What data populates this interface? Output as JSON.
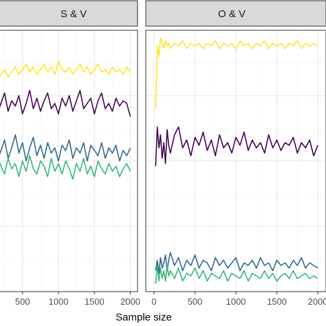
{
  "chart_data": [
    {
      "type": "line",
      "panel": "S & V",
      "xlabel": "Sample size",
      "xlim": [
        -100,
        2100
      ],
      "ylim": [
        0,
        1
      ],
      "x_ticks": [
        500,
        1000,
        1500,
        2000
      ],
      "x_tick_labels": [
        "500",
        "1000",
        "1500",
        "2000"
      ],
      "grid": true,
      "series": [
        {
          "color": "#FDE725",
          "x": [
            50,
            100,
            150,
            200,
            250,
            300,
            350,
            400,
            450,
            500,
            550,
            600,
            650,
            700,
            750,
            800,
            850,
            900,
            950,
            1000,
            1050,
            1100,
            1150,
            1200,
            1250,
            1300,
            1350,
            1400,
            1450,
            1500,
            1550,
            1600,
            1650,
            1700,
            1750,
            1800,
            1850,
            1900,
            1950,
            2000
          ],
          "y": [
            0.82,
            0.84,
            0.81,
            0.83,
            0.85,
            0.82,
            0.84,
            0.86,
            0.83,
            0.85,
            0.87,
            0.84,
            0.86,
            0.83,
            0.85,
            0.87,
            0.84,
            0.86,
            0.83,
            0.88,
            0.85,
            0.84,
            0.86,
            0.83,
            0.85,
            0.87,
            0.84,
            0.86,
            0.83,
            0.85,
            0.87,
            0.84,
            0.85,
            0.83,
            0.86,
            0.84,
            0.85,
            0.83,
            0.86,
            0.84
          ]
        },
        {
          "color": "#440154",
          "x": [
            50,
            100,
            150,
            200,
            250,
            300,
            350,
            400,
            450,
            500,
            550,
            600,
            650,
            700,
            750,
            800,
            850,
            900,
            950,
            1000,
            1050,
            1100,
            1150,
            1200,
            1250,
            1300,
            1350,
            1400,
            1450,
            1500,
            1550,
            1600,
            1650,
            1700,
            1750,
            1800,
            1850,
            1900,
            1950,
            2000
          ],
          "y": [
            0.7,
            0.74,
            0.68,
            0.72,
            0.76,
            0.69,
            0.73,
            0.71,
            0.75,
            0.68,
            0.72,
            0.77,
            0.7,
            0.74,
            0.69,
            0.73,
            0.76,
            0.7,
            0.72,
            0.68,
            0.74,
            0.71,
            0.75,
            0.69,
            0.73,
            0.77,
            0.7,
            0.72,
            0.74,
            0.68,
            0.73,
            0.76,
            0.7,
            0.72,
            0.69,
            0.74,
            0.71,
            0.73,
            0.72,
            0.67
          ]
        },
        {
          "color": "#31688E",
          "x": [
            50,
            100,
            150,
            200,
            250,
            300,
            350,
            400,
            450,
            500,
            550,
            600,
            650,
            700,
            750,
            800,
            850,
            900,
            950,
            1000,
            1050,
            1100,
            1150,
            1200,
            1250,
            1300,
            1350,
            1400,
            1450,
            1500,
            1550,
            1600,
            1650,
            1700,
            1750,
            1800,
            1850,
            1900,
            1950,
            2000
          ],
          "y": [
            0.52,
            0.56,
            0.5,
            0.54,
            0.58,
            0.51,
            0.55,
            0.6,
            0.53,
            0.57,
            0.5,
            0.55,
            0.59,
            0.52,
            0.56,
            0.51,
            0.57,
            0.53,
            0.55,
            0.5,
            0.56,
            0.54,
            0.58,
            0.51,
            0.55,
            0.53,
            0.57,
            0.5,
            0.56,
            0.54,
            0.52,
            0.57,
            0.51,
            0.55,
            0.53,
            0.56,
            0.5,
            0.54,
            0.52,
            0.55
          ]
        },
        {
          "color": "#35B779",
          "x": [
            50,
            100,
            150,
            200,
            250,
            300,
            350,
            400,
            450,
            500,
            550,
            600,
            650,
            700,
            750,
            800,
            850,
            900,
            950,
            1000,
            1050,
            1100,
            1150,
            1200,
            1250,
            1300,
            1350,
            1400,
            1450,
            1500,
            1550,
            1600,
            1650,
            1700,
            1750,
            1800,
            1850,
            1900,
            1950,
            2000
          ],
          "y": [
            0.5,
            0.47,
            0.52,
            0.48,
            0.45,
            0.51,
            0.47,
            0.49,
            0.44,
            0.5,
            0.46,
            0.52,
            0.47,
            0.45,
            0.5,
            0.48,
            0.44,
            0.51,
            0.46,
            0.49,
            0.45,
            0.5,
            0.47,
            0.43,
            0.49,
            0.46,
            0.51,
            0.45,
            0.48,
            0.44,
            0.5,
            0.47,
            0.45,
            0.49,
            0.46,
            0.48,
            0.44,
            0.47,
            0.49,
            0.46
          ]
        }
      ]
    },
    {
      "type": "line",
      "panel": "O & V",
      "xlabel": "Sample size",
      "xlim": [
        -100,
        2100
      ],
      "ylim": [
        0,
        1
      ],
      "x_ticks": [
        0,
        500,
        1000,
        1500,
        2000
      ],
      "x_tick_labels": [
        "0",
        "500",
        "1000",
        "1500",
        "2000"
      ],
      "grid": true,
      "series": [
        {
          "color": "#FDE725",
          "x": [
            20,
            40,
            60,
            80,
            100,
            120,
            140,
            160,
            180,
            200,
            250,
            300,
            350,
            400,
            450,
            500,
            550,
            600,
            650,
            700,
            750,
            800,
            850,
            900,
            950,
            1000,
            1050,
            1100,
            1150,
            1200,
            1250,
            1300,
            1350,
            1400,
            1450,
            1500,
            1550,
            1600,
            1650,
            1700,
            1750,
            1800,
            1850,
            1900,
            1950,
            2000
          ],
          "y": [
            0.7,
            0.94,
            0.9,
            0.97,
            0.95,
            0.93,
            0.96,
            0.94,
            0.95,
            0.93,
            0.95,
            0.94,
            0.96,
            0.93,
            0.95,
            0.94,
            0.95,
            0.93,
            0.95,
            0.94,
            0.96,
            0.93,
            0.95,
            0.94,
            0.95,
            0.93,
            0.96,
            0.94,
            0.95,
            0.93,
            0.95,
            0.94,
            0.96,
            0.93,
            0.95,
            0.94,
            0.95,
            0.93,
            0.95,
            0.94,
            0.96,
            0.93,
            0.95,
            0.94,
            0.95,
            0.94
          ]
        },
        {
          "color": "#440154",
          "x": [
            20,
            40,
            60,
            80,
            100,
            120,
            140,
            160,
            180,
            200,
            250,
            300,
            350,
            400,
            450,
            500,
            550,
            600,
            650,
            700,
            750,
            800,
            850,
            900,
            950,
            1000,
            1050,
            1100,
            1150,
            1200,
            1250,
            1300,
            1350,
            1400,
            1450,
            1500,
            1550,
            1600,
            1650,
            1700,
            1750,
            1800,
            1850,
            1900,
            1950,
            2000
          ],
          "y": [
            0.48,
            0.63,
            0.55,
            0.6,
            0.51,
            0.57,
            0.49,
            0.62,
            0.56,
            0.53,
            0.6,
            0.63,
            0.55,
            0.58,
            0.52,
            0.59,
            0.56,
            0.61,
            0.54,
            0.58,
            0.52,
            0.6,
            0.55,
            0.57,
            0.53,
            0.59,
            0.56,
            0.61,
            0.54,
            0.58,
            0.55,
            0.57,
            0.53,
            0.6,
            0.55,
            0.58,
            0.54,
            0.57,
            0.56,
            0.59,
            0.53,
            0.57,
            0.55,
            0.58,
            0.52,
            0.56
          ]
        },
        {
          "color": "#31688E",
          "x": [
            20,
            40,
            60,
            80,
            100,
            120,
            140,
            160,
            180,
            200,
            250,
            300,
            350,
            400,
            450,
            500,
            550,
            600,
            650,
            700,
            750,
            800,
            850,
            900,
            950,
            1000,
            1050,
            1100,
            1150,
            1200,
            1250,
            1300,
            1350,
            1400,
            1450,
            1500,
            1550,
            1600,
            1650,
            1700,
            1750,
            1800,
            1850,
            1900,
            1950,
            2000
          ],
          "y": [
            0.08,
            0.12,
            0.07,
            0.13,
            0.09,
            0.11,
            0.14,
            0.08,
            0.12,
            0.15,
            0.1,
            0.13,
            0.08,
            0.12,
            0.1,
            0.14,
            0.09,
            0.12,
            0.11,
            0.08,
            0.13,
            0.1,
            0.12,
            0.09,
            0.11,
            0.13,
            0.08,
            0.11,
            0.1,
            0.12,
            0.09,
            0.13,
            0.1,
            0.11,
            0.08,
            0.12,
            0.1,
            0.11,
            0.09,
            0.12,
            0.1,
            0.13,
            0.09,
            0.11,
            0.1,
            0.09
          ]
        },
        {
          "color": "#35B779",
          "x": [
            20,
            40,
            60,
            80,
            100,
            120,
            140,
            160,
            180,
            200,
            250,
            300,
            350,
            400,
            450,
            500,
            550,
            600,
            650,
            700,
            750,
            800,
            850,
            900,
            950,
            1000,
            1050,
            1100,
            1150,
            1200,
            1250,
            1300,
            1350,
            1400,
            1450,
            1500,
            1550,
            1600,
            1650,
            1700,
            1750,
            1800,
            1850,
            1900,
            1950,
            2000
          ],
          "y": [
            0.03,
            0.1,
            0.04,
            0.09,
            0.05,
            0.08,
            0.04,
            0.1,
            0.06,
            0.08,
            0.05,
            0.09,
            0.04,
            0.07,
            0.06,
            0.09,
            0.05,
            0.08,
            0.04,
            0.07,
            0.06,
            0.05,
            0.08,
            0.04,
            0.07,
            0.06,
            0.05,
            0.08,
            0.04,
            0.07,
            0.06,
            0.05,
            0.08,
            0.05,
            0.07,
            0.04,
            0.06,
            0.07,
            0.05,
            0.08,
            0.05,
            0.06,
            0.07,
            0.05,
            0.06,
            0.05
          ]
        }
      ]
    }
  ],
  "colors": {
    "strip_fill": "#d9d9d9",
    "strip_border": "#333333",
    "panel_border": "#333333",
    "grid_major": "#ebebeb",
    "grid_minor": "#f5f5f5"
  }
}
